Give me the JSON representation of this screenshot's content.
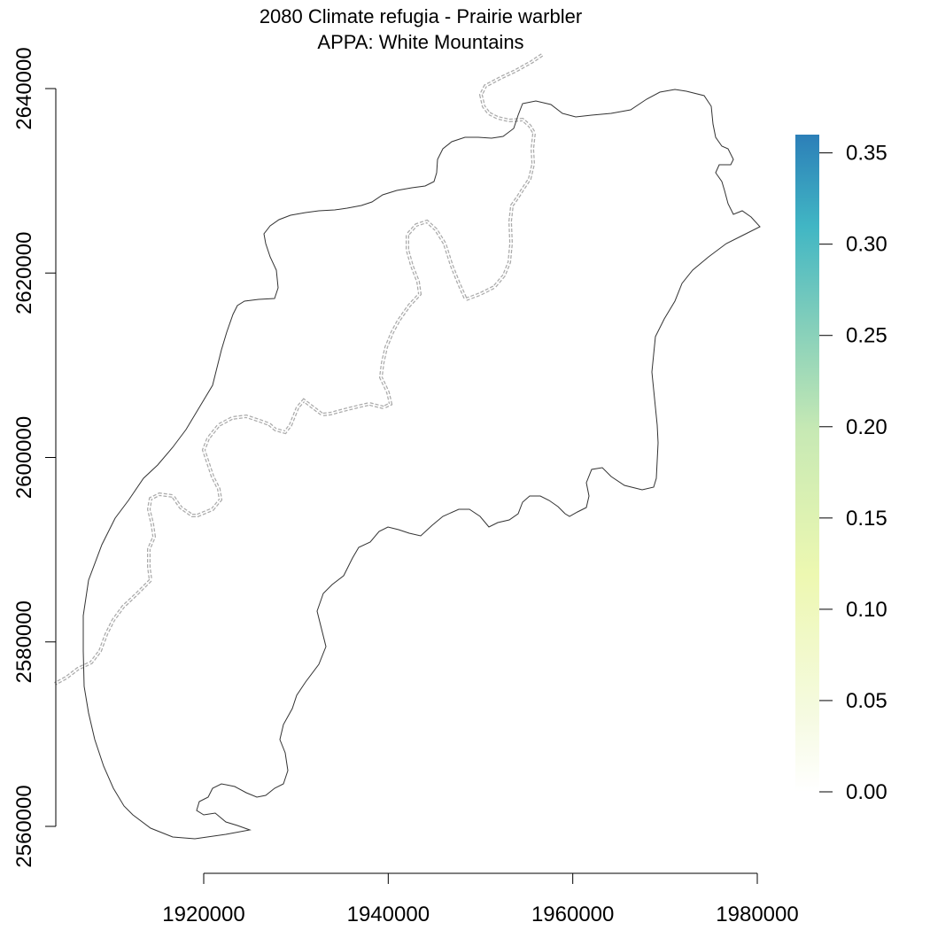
{
  "title": {
    "line1": "2080 Climate refugia - Prairie warbler",
    "line2": "APPA: White Mountains"
  },
  "map": {
    "x_axis": {
      "ticks": [
        1920000,
        1940000,
        1960000,
        1980000
      ],
      "tick_labels": [
        "1920000",
        "1940000",
        "1960000",
        "1980000"
      ]
    },
    "y_axis": {
      "ticks": [
        2560000,
        2580000,
        2600000,
        2620000,
        2640000
      ],
      "tick_labels": [
        "2560000",
        "2580000",
        "2600000",
        "2620000",
        "2640000"
      ]
    },
    "layers": [
      {
        "type": "polygon-outline",
        "style": "solid",
        "color": "#333333"
      },
      {
        "type": "boundary-line",
        "style": "dashed",
        "color": "#aaaaaa"
      }
    ]
  },
  "legend": {
    "type": "continuous-colorbar",
    "placement": "right",
    "min": 0.0,
    "max": 0.36,
    "ticks": [
      0.0,
      0.05,
      0.1,
      0.15,
      0.2,
      0.25,
      0.3,
      0.35
    ],
    "tick_labels": [
      "0.00",
      "0.05",
      "0.10",
      "0.15",
      "0.20",
      "0.25",
      "0.30",
      "0.35"
    ],
    "color_stops": [
      "#ffffff",
      "#f5fae0",
      "#edf8b1",
      "#c7e9b4",
      "#7fcdbb",
      "#41b6c4",
      "#2c7fb8"
    ]
  }
}
